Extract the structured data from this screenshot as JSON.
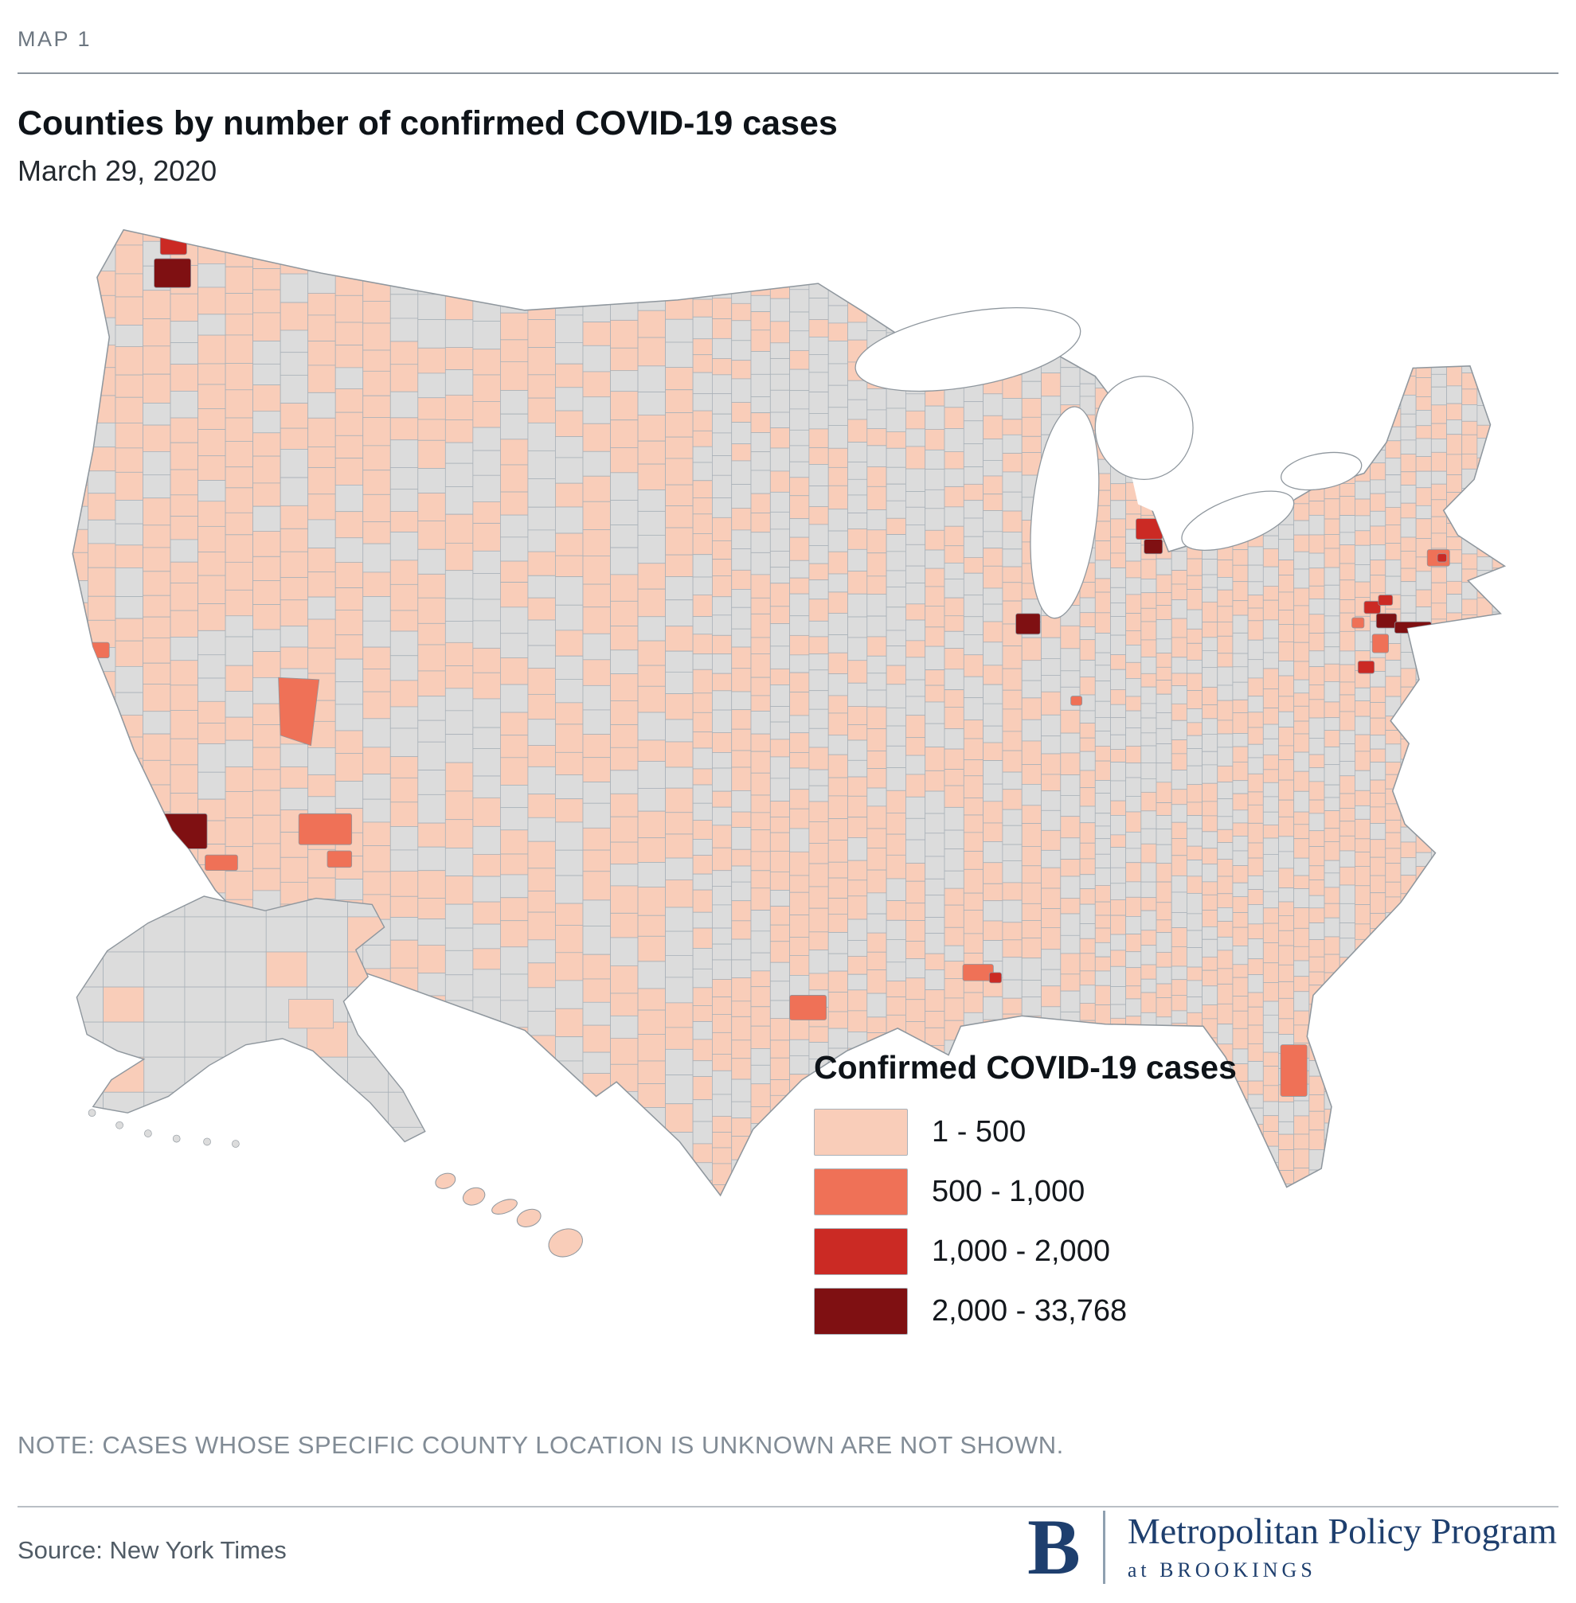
{
  "header": {
    "kicker": "MAP 1",
    "title": "Counties by number of confirmed COVID-19 cases",
    "date": "March 29, 2020"
  },
  "legend": {
    "title": "Confirmed COVID-19 cases",
    "classes": [
      {
        "label": "1 - 500",
        "color": "#f9cdb9"
      },
      {
        "label": "500 - 1,000",
        "color": "#ef7157"
      },
      {
        "label": "1,000 - 2,000",
        "color": "#cb2a24"
      },
      {
        "label": "2,000 - 33,768",
        "color": "#7f1012"
      }
    ]
  },
  "map": {
    "land_no_data_color": "#dcdcdc",
    "county_line_color": "#a9b1b8",
    "outline_color": "#8f979e",
    "water_color": "#ffffff"
  },
  "note": "NOTE: CASES WHOSE SPECIFIC COUNTY LOCATION IS UNKNOWN ARE NOT SHOWN.",
  "source": "Source: New York Times",
  "branding": {
    "logo_letter": "B",
    "program_name": "Metropolitan Policy Program",
    "program_subtitle": "at BROOKINGS"
  }
}
